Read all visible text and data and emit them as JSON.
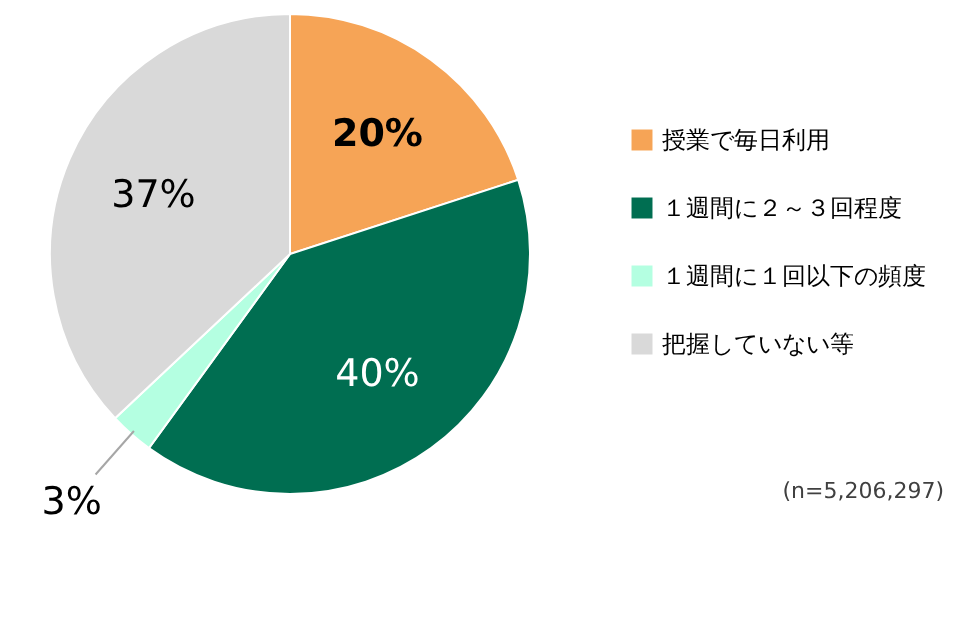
{
  "chart_data": {
    "type": "pie",
    "categories": [
      "授業で毎日利用",
      "１週間に２～３回程度",
      "１週間に１回以下の頻度",
      "把握していない等"
    ],
    "values": [
      20,
      40,
      3,
      37
    ],
    "colors": [
      "#f6a456",
      "#006e51",
      "#b4ffe1",
      "#d9d9d9"
    ],
    "value_labels": [
      "20%",
      "40%",
      "3%",
      "37%"
    ],
    "legend": "right",
    "annotations": [
      "(n=5,206,297)"
    ]
  }
}
